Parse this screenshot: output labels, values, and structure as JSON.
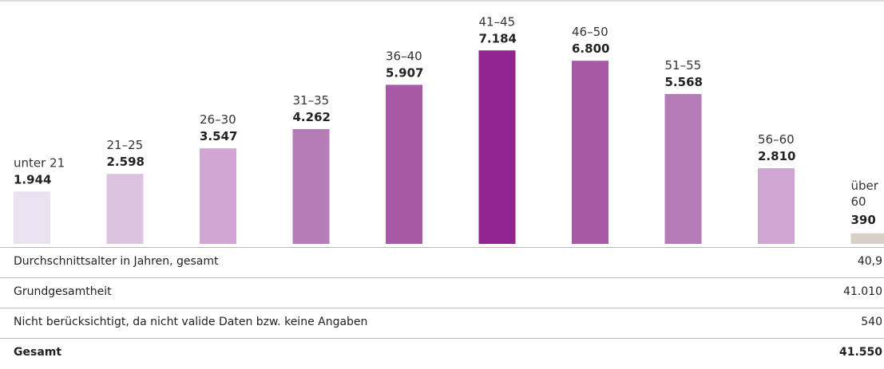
{
  "chart_data": {
    "type": "bar",
    "categories": [
      "unter 21",
      "21–25",
      "26–30",
      "31–35",
      "36–40",
      "41–45",
      "46–50",
      "51–55",
      "56–60",
      "über 60"
    ],
    "values": [
      1944,
      2598,
      3547,
      4262,
      5907,
      7184,
      6800,
      5568,
      2810,
      390
    ],
    "value_labels": [
      "1.944",
      "2.598",
      "3.547",
      "4.262",
      "5.907",
      "7.184",
      "6.800",
      "5.568",
      "2.810",
      "390"
    ],
    "ylim": [
      0,
      8000
    ],
    "grid": false,
    "legend": "none",
    "colors": [
      "#ece1f1",
      "#dcc3e0",
      "#cfa7d2",
      "#b67cb8",
      "#a659a5",
      "#922590",
      "#a659a5",
      "#b67cb8",
      "#cfa7d2",
      "#d6d0c6"
    ]
  },
  "table": {
    "rows": [
      {
        "label": "Durchschnittsalter in Jahren, gesamt",
        "value": "40,9"
      },
      {
        "label": "Grundgesamtheit",
        "value": "41.010"
      },
      {
        "label": "Nicht berücksichtigt, da nicht valide Daten bzw. keine Angaben",
        "value": "540"
      },
      {
        "label": "Gesamt",
        "value": "41.550"
      }
    ]
  }
}
